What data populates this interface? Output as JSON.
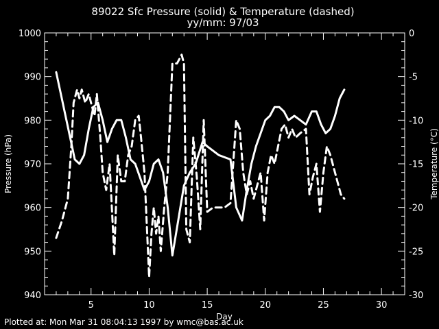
{
  "chart_data": {
    "type": "line",
    "title": "89022 Sfc Pressure (solid) & Temperature (dashed)",
    "subtitle": "yy/mm: 97/03",
    "xlabel": "Day",
    "ylabel_left": "Pressure (hPa)",
    "ylabel_right": "Temperature (°C)",
    "xlim": [
      1,
      32
    ],
    "ylim_left": [
      940,
      1000
    ],
    "ylim_right": [
      -30,
      0
    ],
    "xticks": [
      5,
      10,
      15,
      20,
      25,
      30
    ],
    "yticks_left": [
      940,
      950,
      960,
      970,
      980,
      990,
      1000
    ],
    "yticks_right": [
      -30,
      -25,
      -20,
      -15,
      -10,
      -5,
      0
    ],
    "grid": false,
    "series": [
      {
        "name": "Pressure",
        "axis": "left",
        "style": "solid",
        "x": [
          2.0,
          2.4,
          2.8,
          3.2,
          3.6,
          4.0,
          4.4,
          4.8,
          5.2,
          5.6,
          6.0,
          6.4,
          6.8,
          7.2,
          7.6,
          8.0,
          8.4,
          8.8,
          9.2,
          9.6,
          10.0,
          10.4,
          10.8,
          11.2,
          11.6,
          12.0,
          12.5,
          13.0,
          13.5,
          14.0,
          14.6,
          15.0,
          16.0,
          17.0,
          17.5,
          18.0,
          18.4,
          18.8,
          19.2,
          19.6,
          20.0,
          20.4,
          20.8,
          21.2,
          21.6,
          22.0,
          22.5,
          23.0,
          23.5,
          24.0,
          24.4,
          24.8,
          25.2,
          25.6,
          26.0,
          26.4,
          26.8
        ],
        "values": [
          991,
          986,
          981,
          976,
          971,
          970,
          972,
          978,
          983,
          984,
          980,
          975,
          978,
          980,
          980,
          976,
          971,
          970,
          967,
          964,
          966,
          970,
          971,
          968,
          960,
          949,
          957,
          965,
          968,
          970,
          975,
          974,
          972,
          971,
          960,
          957,
          964,
          970,
          974,
          977,
          980,
          981,
          983,
          983,
          982,
          980,
          981,
          980,
          979,
          982,
          982,
          979,
          977,
          978,
          981,
          985,
          987
        ]
      },
      {
        "name": "Temperature",
        "axis": "right",
        "style": "dashed",
        "x": [
          2.0,
          2.5,
          3.0,
          3.3,
          3.5,
          3.8,
          4.0,
          4.2,
          4.5,
          4.8,
          5.0,
          5.3,
          5.5,
          5.8,
          6.0,
          6.3,
          6.6,
          7.0,
          7.3,
          7.6,
          7.9,
          8.2,
          8.5,
          8.8,
          9.1,
          9.3,
          9.6,
          10.0,
          10.2,
          10.4,
          10.6,
          10.8,
          11.0,
          11.3,
          11.6,
          12.0,
          12.4,
          12.8,
          13.0,
          13.2,
          13.5,
          13.8,
          14.1,
          14.4,
          14.7,
          15.0,
          15.5,
          16.0,
          16.5,
          17.0,
          17.5,
          17.8,
          18.1,
          18.4,
          18.7,
          19.0,
          19.3,
          19.6,
          19.9,
          20.2,
          20.5,
          20.8,
          21.1,
          21.4,
          21.7,
          22.0,
          22.3,
          22.6,
          23.0,
          23.5,
          23.8,
          24.1,
          24.4,
          24.7,
          25.0,
          25.3,
          25.6,
          25.9,
          26.2,
          26.5,
          26.8
        ],
        "values": [
          -23.5,
          -21.5,
          -19,
          -13,
          -8,
          -6.5,
          -7.5,
          -6.5,
          -8,
          -7,
          -8,
          -9.5,
          -7,
          -12,
          -16,
          -18,
          -15,
          -25.5,
          -14,
          -17,
          -17,
          -14,
          -13,
          -10,
          -9.5,
          -12,
          -16,
          -28,
          -23,
          -20,
          -23,
          -21,
          -25,
          -20,
          -16,
          -3.5,
          -3.5,
          -2.5,
          -3.5,
          -22.5,
          -24,
          -12,
          -16.5,
          -22.5,
          -10,
          -20.5,
          -20,
          -20,
          -20,
          -19.5,
          -10,
          -11,
          -16,
          -18.5,
          -17,
          -19,
          -17.5,
          -16,
          -21.5,
          -16,
          -14,
          -15,
          -13,
          -11,
          -10.5,
          -12,
          -11,
          -12,
          -11.5,
          -11,
          -18.5,
          -16.5,
          -15,
          -20.5,
          -16,
          -13,
          -14,
          -15.5,
          -17,
          -18.5,
          -19
        ]
      }
    ]
  },
  "footer": "Plotted at: Mon Mar 31 08:04:13 1997 by wmc@bas.ac.uk"
}
